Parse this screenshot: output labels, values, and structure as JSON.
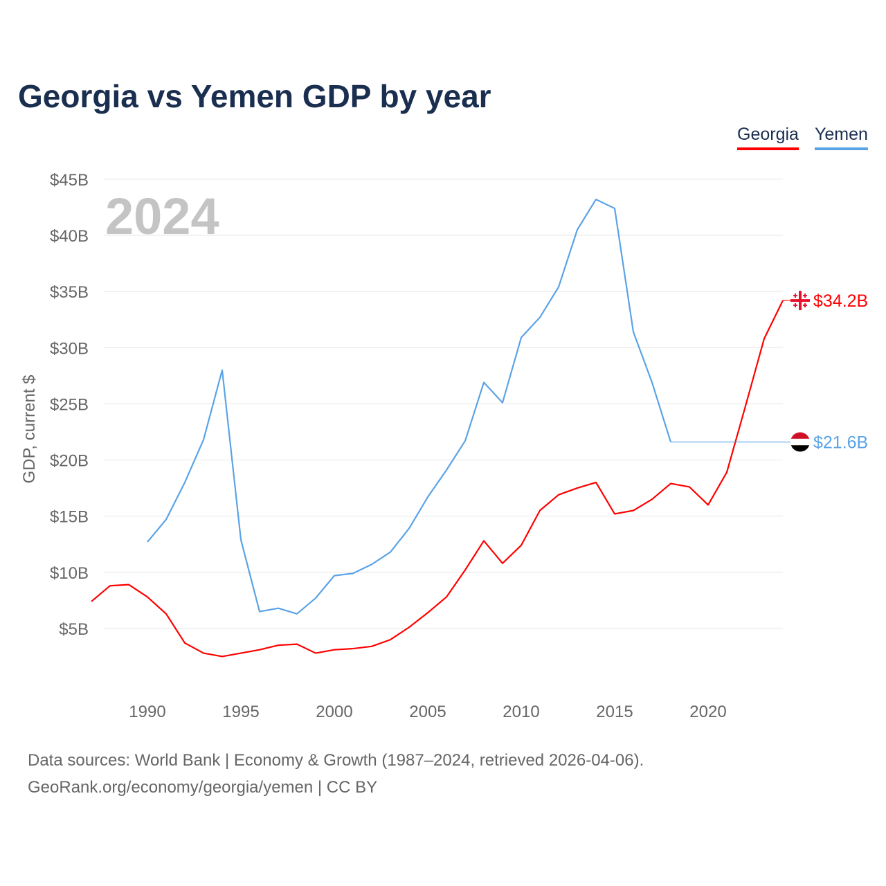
{
  "title": "Georgia vs Yemen GDP by year",
  "legend": [
    {
      "label": "Georgia",
      "color": "#ff0000"
    },
    {
      "label": "Yemen",
      "color": "#5ba3e6"
    }
  ],
  "year_watermark": "2024",
  "source_line1": "Data sources: World Bank | Economy & Growth (1987–2024, retrieved 2026-04-06).",
  "source_line2": "GeoRank.org/economy/georgia/yemen | CC BY",
  "chart_data": {
    "type": "line",
    "title": "Georgia vs Yemen GDP by year",
    "xlabel": "",
    "ylabel": "GDP, current $",
    "xlim": [
      1987,
      2024
    ],
    "ylim": [
      0,
      45
    ],
    "yticks": [
      5,
      10,
      15,
      20,
      25,
      30,
      35,
      40,
      45
    ],
    "ytick_labels": [
      "$5B",
      "$10B",
      "$15B",
      "$20B",
      "$25B",
      "$30B",
      "$35B",
      "$40B",
      "$45B"
    ],
    "xticks": [
      1990,
      1995,
      2000,
      2005,
      2010,
      2015,
      2020
    ],
    "xtick_labels": [
      "1990",
      "1995",
      "2000",
      "2005",
      "2010",
      "2015",
      "2020"
    ],
    "grid": true,
    "legend_position": "top-right",
    "series": [
      {
        "name": "Georgia",
        "color": "#ff0000",
        "end_label": "$34.2B",
        "end_value": 34.2,
        "x": [
          1987,
          1988,
          1989,
          1990,
          1991,
          1992,
          1993,
          1994,
          1995,
          1996,
          1997,
          1998,
          1999,
          2000,
          2001,
          2002,
          2003,
          2004,
          2005,
          2006,
          2007,
          2008,
          2009,
          2010,
          2011,
          2012,
          2013,
          2014,
          2015,
          2016,
          2017,
          2018,
          2019,
          2020,
          2021,
          2022,
          2023,
          2024
        ],
        "values": [
          7.4,
          8.8,
          8.9,
          7.8,
          6.3,
          3.7,
          2.8,
          2.5,
          2.8,
          3.1,
          3.5,
          3.6,
          2.8,
          3.1,
          3.2,
          3.4,
          4.0,
          5.1,
          6.4,
          7.8,
          10.2,
          12.8,
          10.8,
          12.4,
          15.5,
          16.9,
          17.5,
          18.0,
          15.2,
          15.5,
          16.5,
          17.9,
          17.6,
          16.0,
          18.9,
          24.8,
          30.8,
          34.2
        ]
      },
      {
        "name": "Yemen",
        "color": "#5ba3e6",
        "end_label": "$21.6B",
        "end_value": 21.6,
        "x": [
          1990,
          1991,
          1992,
          1993,
          1994,
          1995,
          1996,
          1997,
          1998,
          1999,
          2000,
          2001,
          2002,
          2003,
          2004,
          2005,
          2006,
          2007,
          2008,
          2009,
          2010,
          2011,
          2012,
          2013,
          2014,
          2015,
          2016,
          2017,
          2018
        ],
        "values": [
          12.7,
          14.7,
          18.0,
          21.8,
          28.0,
          12.9,
          6.5,
          6.8,
          6.3,
          7.7,
          9.7,
          9.9,
          10.7,
          11.8,
          13.9,
          16.7,
          19.1,
          21.7,
          26.9,
          25.1,
          30.9,
          32.7,
          35.4,
          40.5,
          43.2,
          42.4,
          31.4,
          26.9,
          21.6
        ]
      }
    ]
  }
}
